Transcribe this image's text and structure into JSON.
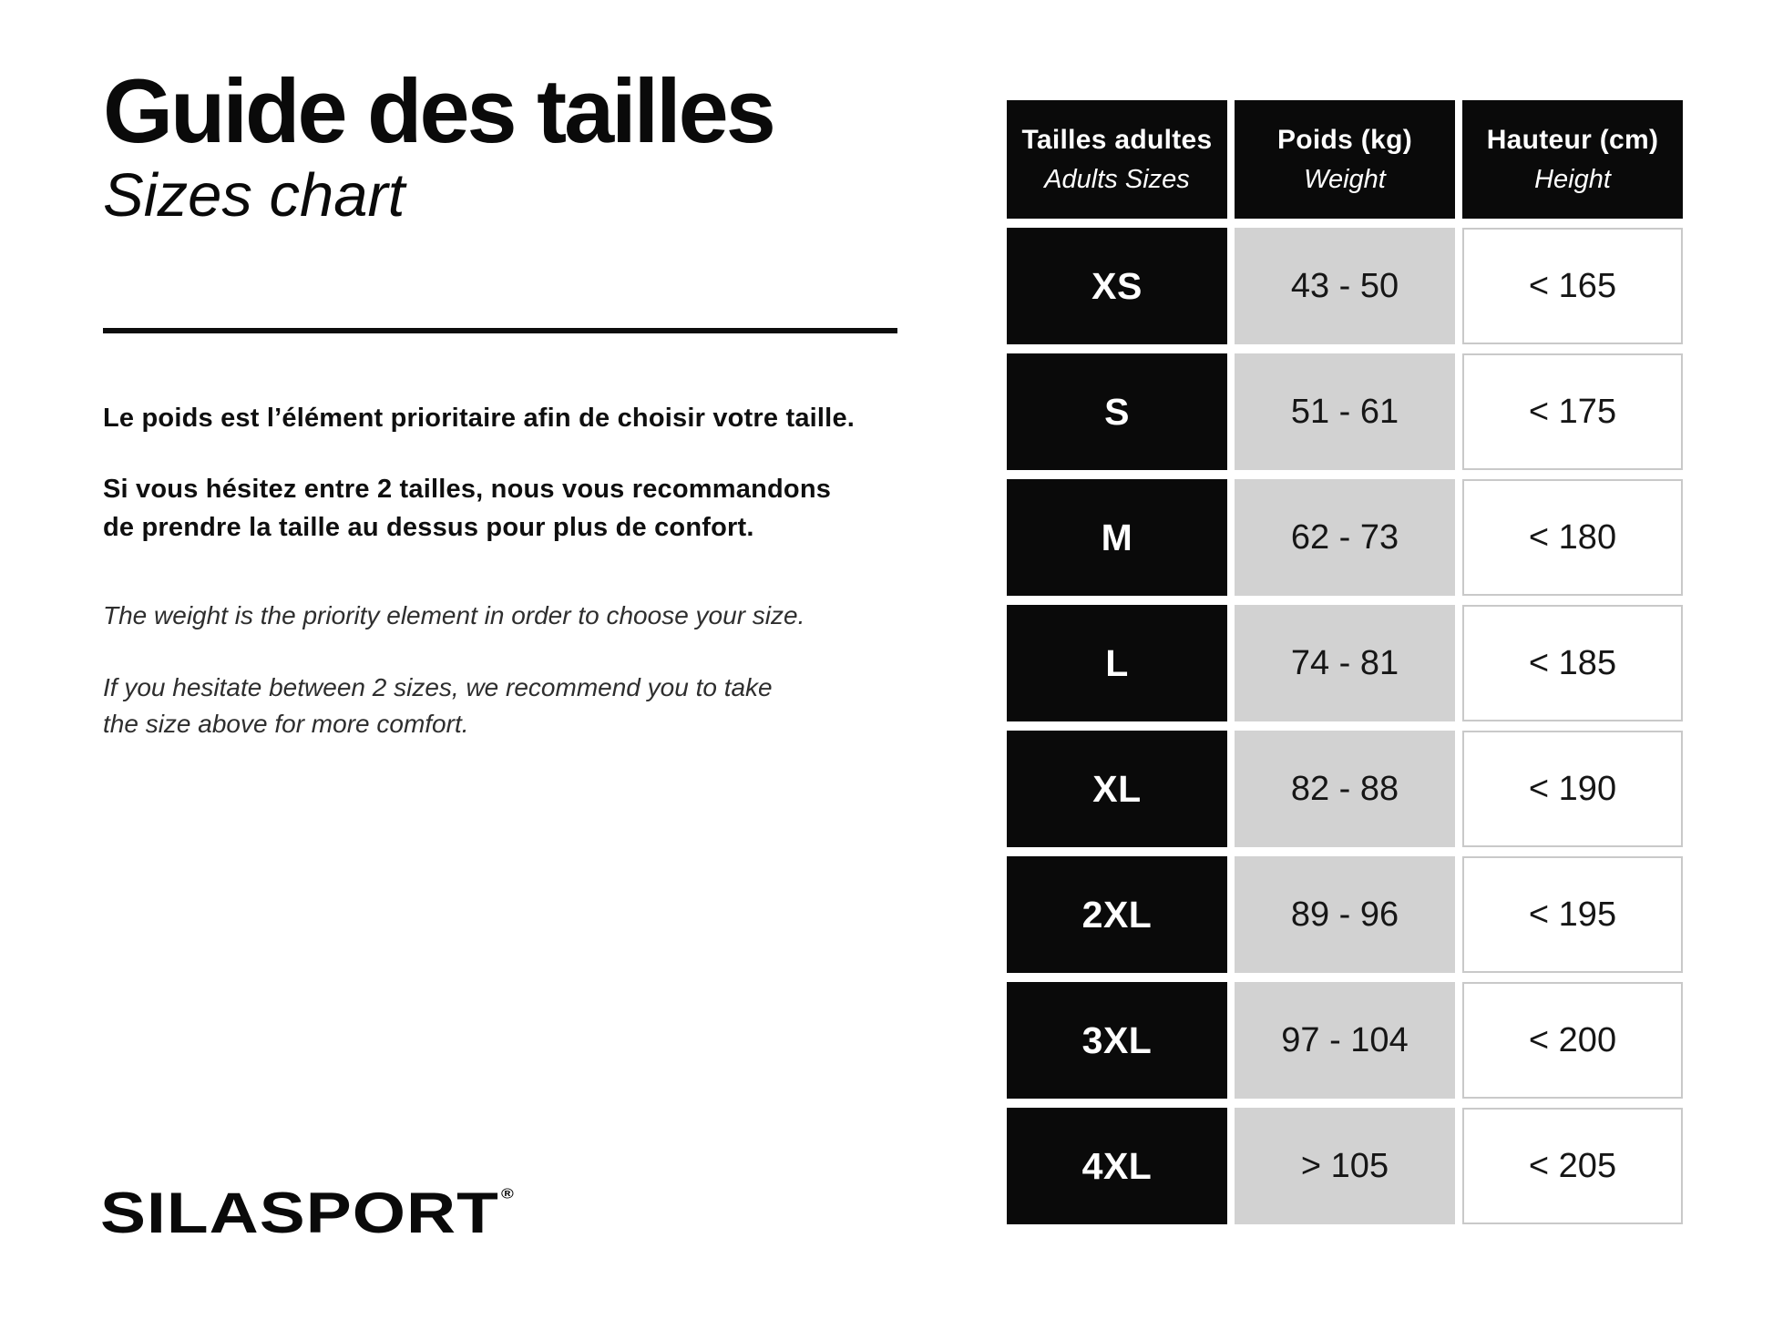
{
  "header": {
    "title_fr": "Guide des tailles",
    "title_en": "Sizes chart"
  },
  "intro": {
    "fr_line1": "Le poids est l’élément prioritaire afin de choisir votre taille.",
    "fr_line2": "Si vous hésitez entre 2 tailles, nous vous recommandons\nde prendre la taille au dessus pour plus de confort.",
    "en_line1": "The weight is the priority element in order to choose your size.",
    "en_line2": "If you hesitate between 2 sizes, we recommend you to take\nthe size above for more comfort."
  },
  "table": {
    "columns": [
      {
        "label_fr": "Tailles adultes",
        "label_en": "Adults Sizes"
      },
      {
        "label_fr": "Poids (kg)",
        "label_en": "Weight"
      },
      {
        "label_fr": "Hauteur (cm)",
        "label_en": "Height"
      }
    ],
    "rows": [
      {
        "size": "XS",
        "weight": "43 - 50",
        "height": "< 165"
      },
      {
        "size": "S",
        "weight": "51 - 61",
        "height": "< 175"
      },
      {
        "size": "M",
        "weight": "62 - 73",
        "height": "< 180"
      },
      {
        "size": "L",
        "weight": "74 - 81",
        "height": "< 185"
      },
      {
        "size": "XL",
        "weight": "82 - 88",
        "height": "< 190"
      },
      {
        "size": "2XL",
        "weight": "89 - 96",
        "height": "< 195"
      },
      {
        "size": "3XL",
        "weight": "97 - 104",
        "height": "< 200"
      },
      {
        "size": "4XL",
        "weight": "> 105",
        "height": "< 205"
      }
    ]
  },
  "brand": {
    "name": "SILASPORT",
    "registered_mark": "®"
  },
  "colors": {
    "black_cell": "#0a0a0a",
    "gray_cell": "#d2d2d2",
    "height_cell_border": "#c9c9c9",
    "background": "#ffffff"
  }
}
